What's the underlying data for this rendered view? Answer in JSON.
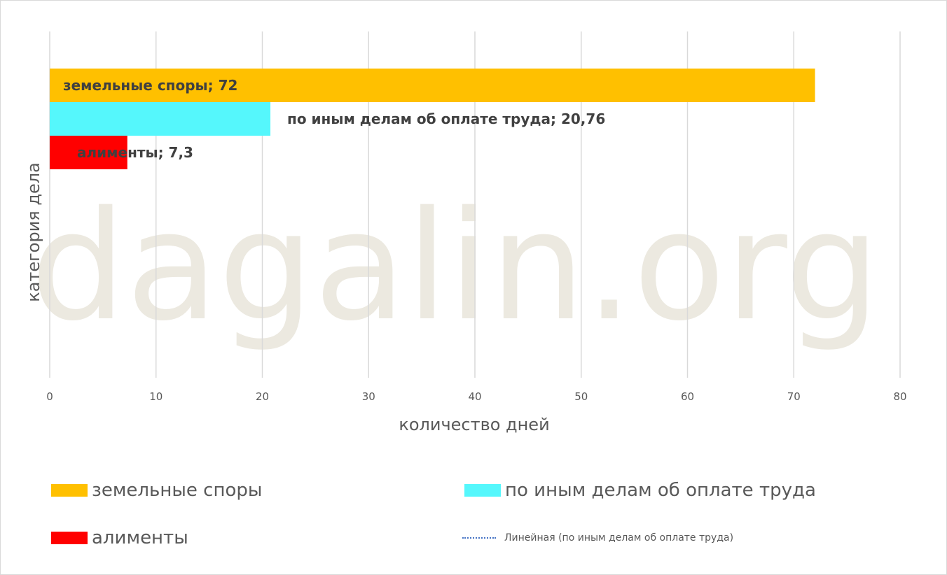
{
  "chart_data": {
    "type": "bar",
    "orientation": "horizontal",
    "xlabel": "количество дней",
    "ylabel": "категория дела",
    "xlim": [
      0,
      80
    ],
    "xticks": [
      0,
      10,
      20,
      30,
      40,
      50,
      60,
      70,
      80
    ],
    "grid": true,
    "legend_position": "bottom",
    "series": [
      {
        "name": "земельные споры",
        "value": 72,
        "label": "земельные споры; 72",
        "color": "#ffc000"
      },
      {
        "name": "по иным делам об оплате труда",
        "value": 20.76,
        "label": "по иным делам об оплате труда; 20,76",
        "color": "#55f7fc"
      },
      {
        "name": "алименты",
        "value": 7.3,
        "label": "алименты; 7,3",
        "color": "#ff0000"
      }
    ],
    "trendline": {
      "name": "Линейная (по иным делам об оплате труда)",
      "color": "#4472c4",
      "style": "dotted"
    }
  },
  "watermark": "dagalin.org"
}
